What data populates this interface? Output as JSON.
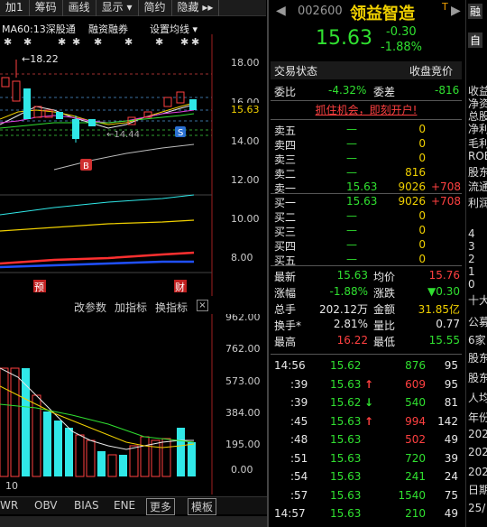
{
  "toolbar": {
    "items": [
      "加1",
      "筹码",
      "画线",
      "显示 ▾",
      "简约",
      "隐藏 ▸▸"
    ]
  },
  "ma_line": {
    "label": "MA60:13深股通",
    "margin": "融资融券",
    "settings": "设置均线 ▾"
  },
  "price_axis": [
    "18.00",
    "16.00",
    "15.63",
    "14.00",
    "12.00",
    "10.00",
    "8.00"
  ],
  "chart_annotations": {
    "high_label": "←18.22",
    "low_label": "←14.44",
    "b_marker": "B",
    "s_marker": "S",
    "pre_badge": "预",
    "fin_badge": "财"
  },
  "indicator_bar": {
    "items": [
      "改参数",
      "加指标",
      "换指标"
    ],
    "close": "×"
  },
  "volume_axis": [
    "962.00",
    "762.00",
    "573.00",
    "384.00",
    "195.00",
    "0.00"
  ],
  "volume_bottom_label": "10",
  "bottom_tabs": [
    "WR",
    "OBV",
    "BIAS",
    "ENE",
    "更多",
    "模板"
  ],
  "stock": {
    "code": "002600",
    "name": "领益智造",
    "tag": "T",
    "price": "15.63",
    "change": "-0.30",
    "change_pct": "-1.88%"
  },
  "trade_header": {
    "status": "交易状态",
    "auction": "收盘竞价"
  },
  "ratio": {
    "weibi_label": "委比",
    "weibi_value": "-4.32%",
    "weicha_label": "委差",
    "weicha_value": "-816"
  },
  "promo_banner": "抓住机会，即刻开户!",
  "sell_orders": [
    {
      "label": "卖五",
      "price": "—",
      "vol": "0",
      "chg": ""
    },
    {
      "label": "卖四",
      "price": "—",
      "vol": "0",
      "chg": ""
    },
    {
      "label": "卖三",
      "price": "—",
      "vol": "0",
      "chg": ""
    },
    {
      "label": "卖二",
      "price": "—",
      "vol": "816",
      "chg": ""
    },
    {
      "label": "卖一",
      "price": "15.63",
      "vol": "9026",
      "chg": "+708"
    }
  ],
  "buy_orders": [
    {
      "label": "买一",
      "price": "15.63",
      "vol": "9026",
      "chg": "+708"
    },
    {
      "label": "买二",
      "price": "—",
      "vol": "0",
      "chg": ""
    },
    {
      "label": "买三",
      "price": "—",
      "vol": "0",
      "chg": ""
    },
    {
      "label": "买四",
      "price": "—",
      "vol": "0",
      "chg": ""
    },
    {
      "label": "买五",
      "price": "—",
      "vol": "0",
      "chg": ""
    }
  ],
  "stats": [
    {
      "l1": "最新",
      "v1": "15.63",
      "l2": "均价",
      "v2": "15.76"
    },
    {
      "l1": "涨幅",
      "v1": "-1.88%",
      "l2": "涨跌",
      "v2": "▼0.30"
    },
    {
      "l1": "总手",
      "v1": "202.12万",
      "l2": "金额",
      "v2": "31.85亿"
    },
    {
      "l1": "换手*",
      "v1": "2.81%",
      "l2": "量比",
      "v2": "0.77"
    },
    {
      "l1": "最高",
      "v1": "16.22",
      "l2": "最低",
      "v2": "15.55"
    }
  ],
  "ticks": [
    {
      "time": "14:56",
      "price": "15.62",
      "arrow": "",
      "vol": "876",
      "n": "95"
    },
    {
      "time": ":39",
      "price": "15.63",
      "arrow": "↑",
      "vol": "609",
      "n": "95"
    },
    {
      "time": ":39",
      "price": "15.62",
      "arrow": "↓",
      "vol": "540",
      "n": "81"
    },
    {
      "time": ":45",
      "price": "15.63",
      "arrow": "↑",
      "vol": "994",
      "n": "142"
    },
    {
      "time": ":48",
      "price": "15.63",
      "arrow": "",
      "vol": "502",
      "n": "49"
    },
    {
      "time": ":51",
      "price": "15.63",
      "arrow": "",
      "vol": "720",
      "n": "39"
    },
    {
      "time": ":54",
      "price": "15.63",
      "arrow": "",
      "vol": "241",
      "n": "24"
    },
    {
      "time": ":57",
      "price": "15.63",
      "arrow": "",
      "vol": "1540",
      "n": "75"
    },
    {
      "time": "14:57",
      "price": "15.63",
      "arrow": "",
      "vol": "210",
      "n": "49"
    }
  ],
  "sidebar_right": {
    "top_button": "融",
    "second_button": "自",
    "items": [
      "收益",
      "净资",
      "总股",
      "净利",
      "毛利",
      "ROE",
      "股东",
      "流通",
      "利润",
      "4",
      "3",
      "2",
      "1",
      "0",
      "十大",
      "公募",
      "6家",
      "股东",
      "股东",
      "人均",
      "年份",
      "202",
      "202",
      "202",
      "日期",
      "25/"
    ]
  },
  "colors": {
    "up": "#ff4040",
    "down": "#30e030",
    "accent": "#f0d000",
    "bg": "#000000"
  }
}
